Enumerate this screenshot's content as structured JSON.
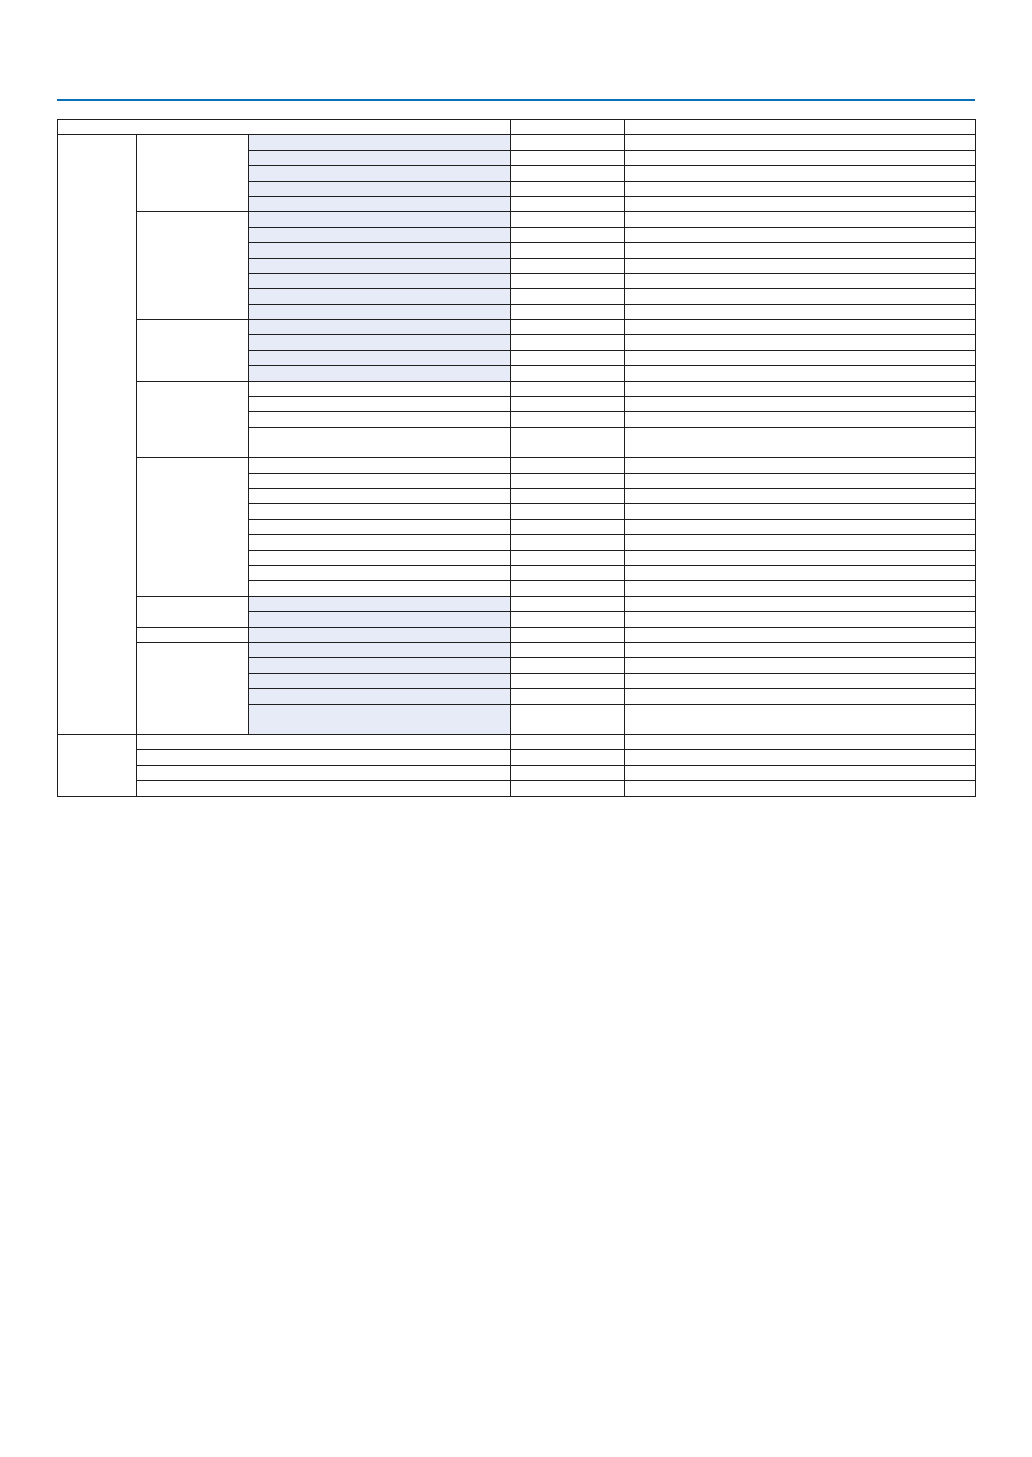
{
  "colors": {
    "header_rule": "#0a6fb8",
    "shaded_cell": "#e6ebf7",
    "border": "#1e1e1e"
  },
  "table": {
    "header": [
      "",
      "",
      ""
    ],
    "sections": [
      {
        "label": "",
        "groups": [
          {
            "label": "",
            "shaded": true,
            "rows": [
              {
                "lines": 1
              },
              {
                "lines": 1
              },
              {
                "lines": 1
              },
              {
                "lines": 1
              },
              {
                "lines": 1
              }
            ]
          },
          {
            "label": "",
            "shaded": true,
            "rows": [
              {
                "lines": 1
              },
              {
                "lines": 1
              },
              {
                "lines": 1
              },
              {
                "lines": 1
              },
              {
                "lines": 1
              },
              {
                "lines": 1
              },
              {
                "lines": 1
              }
            ]
          },
          {
            "label": "",
            "shaded": true,
            "rows": [
              {
                "lines": 1
              },
              {
                "lines": 1
              },
              {
                "lines": 1
              },
              {
                "lines": 1
              }
            ]
          },
          {
            "label": "",
            "shaded": false,
            "rows": [
              {
                "lines": 1
              },
              {
                "lines": 1
              },
              {
                "lines": 1
              },
              {
                "lines": 2
              }
            ]
          },
          {
            "label": "",
            "shaded": false,
            "rows": [
              {
                "lines": 1
              },
              {
                "lines": 1
              },
              {
                "lines": 1
              },
              {
                "lines": 1
              },
              {
                "lines": 1
              },
              {
                "lines": 1
              },
              {
                "lines": 1
              },
              {
                "lines": 1
              },
              {
                "lines": 1
              }
            ]
          },
          {
            "label": "",
            "shaded": true,
            "rows": [
              {
                "lines": 1
              },
              {
                "lines": 1
              }
            ]
          },
          {
            "label": "",
            "shaded": true,
            "rows": [
              {
                "lines": 1
              }
            ]
          },
          {
            "label": "",
            "shaded": true,
            "rows": [
              {
                "lines": 1
              },
              {
                "lines": 1
              },
              {
                "lines": 1
              },
              {
                "lines": 1
              },
              {
                "lines": 2
              }
            ]
          }
        ]
      },
      {
        "label": "",
        "rows": [
          {
            "lines": 1
          },
          {
            "lines": 1
          },
          {
            "lines": 1
          },
          {
            "lines": 1
          }
        ]
      }
    ]
  }
}
